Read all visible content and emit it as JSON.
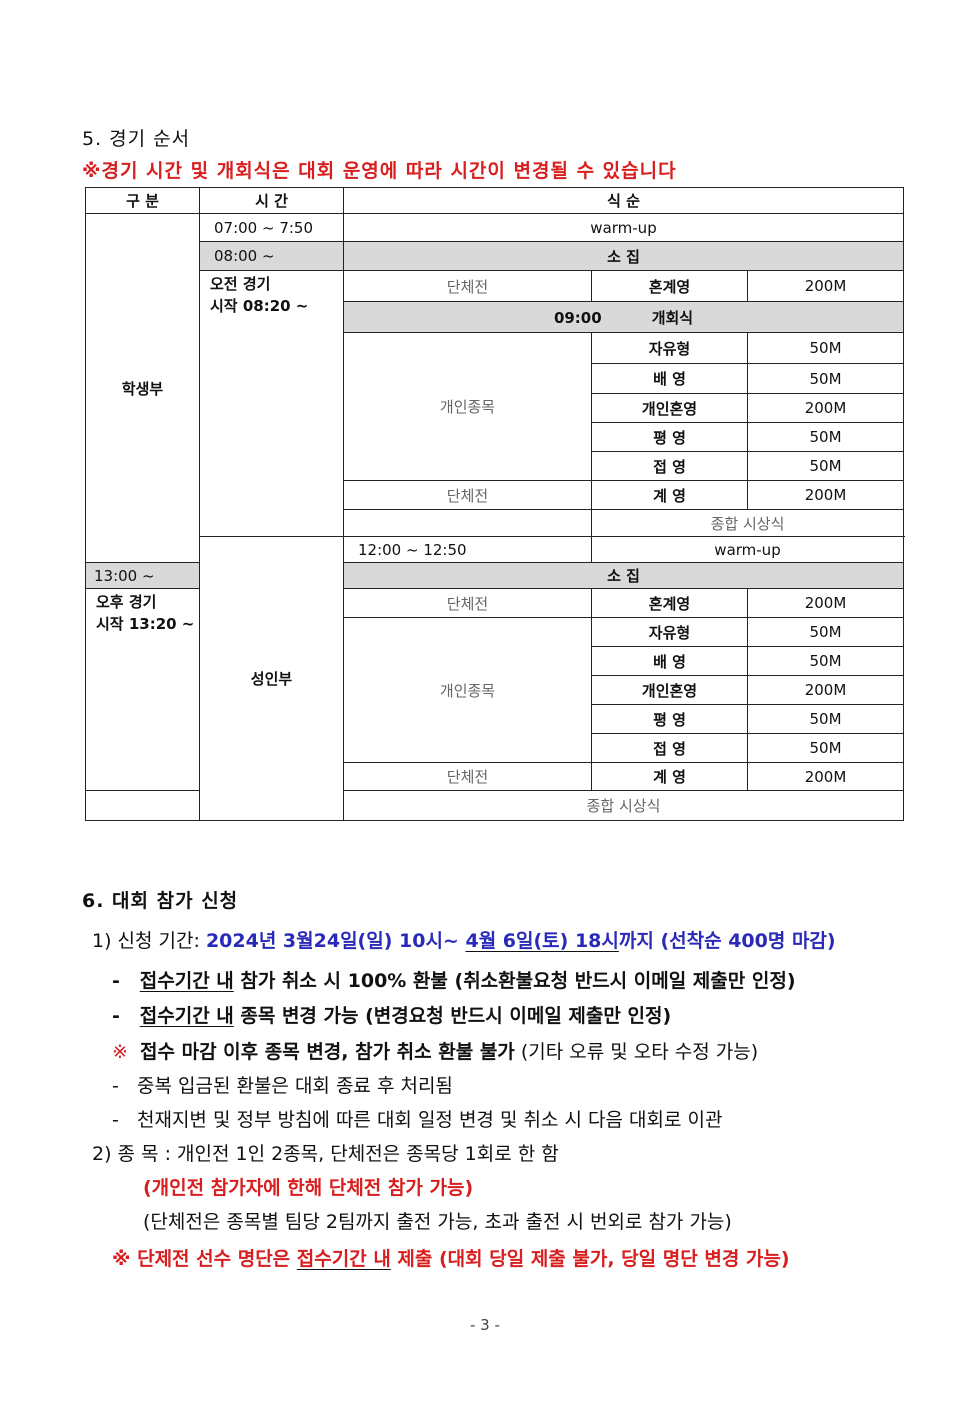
{
  "section5": {
    "title": "5.  경기  순서",
    "notice": "※경기 시간 및 개회식은 대회 운영에 따라 시간이 변경될 수 있습니다"
  },
  "table": {
    "headers": [
      "구 분",
      "시  간",
      "식    순"
    ],
    "student": {
      "group": "학생부",
      "warmup_time": "07:00 ~ 7:50",
      "warmup": "warm-up",
      "assembly_time": "08:00 ~",
      "assembly": "소    집",
      "start": "오전 경기",
      "start_time": "시작 08:20 ~",
      "opening_time": "09:00",
      "opening": "개회식",
      "rows": [
        [
          "단체전",
          "혼계영",
          "200M"
        ],
        [
          "개인종목",
          "자유형",
          "50M"
        ],
        [
          "",
          "배  영",
          "50M"
        ],
        [
          "",
          "개인혼영",
          "200M"
        ],
        [
          "",
          "평  영",
          "50M"
        ],
        [
          "",
          "접  영",
          "50M"
        ],
        [
          "단체전",
          "계  영",
          "200M"
        ]
      ],
      "award": "종합 시상식"
    },
    "adult": {
      "group": "성인부",
      "warmup_time": "12:00 ~ 12:50",
      "warmup": "warm-up",
      "assembly_time": "13:00 ~",
      "assembly": "소    집",
      "start": "오후 경기",
      "start_time": "시작 13:20 ~",
      "rows": [
        [
          "단체전",
          "혼계영",
          "200M"
        ],
        [
          "개인종목",
          "자유형",
          "50M"
        ],
        [
          "",
          "배  영",
          "50M"
        ],
        [
          "",
          "개인혼영",
          "200M"
        ],
        [
          "",
          "평  영",
          "50M"
        ],
        [
          "",
          "접  영",
          "50M"
        ],
        [
          "단체전",
          "계  영",
          "200M"
        ]
      ],
      "award": "종합 시상식"
    }
  },
  "section6": {
    "title": "6.  대회  참가  신청",
    "item1_label": "1)  신청  기간:",
    "item1_a": "2024년  3월24일(일) 10시~ ",
    "item1_b": "4월  6일(토) 18시",
    "item1_c": "까지 (선착순  400명 마감)",
    "b1_dash": "-",
    "b1_u": "접수기간  내",
    "b1_rest": " 참가 취소 시 100%  환불 (취소환불요청 반드시 이메일 제출만 인정)",
    "b2_dash": "-",
    "b2_u": "접수기간  내",
    "b2_rest": " 종목 변경 가능 (변경요청 반드시 이메일 제출만 인정)",
    "b3_mark": "※",
    "b3_bold": "접수 마감 이후 종목 변경, 참가 취소 환불 불가",
    "b3_rest": " (기타 오류 및 오타 수정 가능)",
    "b4_dash": "-",
    "b4": "중복 입금된 환불은 대회 종료 후 처리됨",
    "b5_dash": "-",
    "b5": "천재지변 및 정부 방침에 따른 대회 일정 변경 및 취소 시 다음 대회로 이관",
    "item2": "2)  종  목  :  개인전  1인  2종목,  단체전은  종목당  1회로  한  함",
    "item2_red": "(개인전  참가자에  한해  단체전  참가 가능)",
    "item2_note": "(단체전은  종목별  팀당  2팀까지  출전 가능, 초과 출전 시  번외로  참가  가능)",
    "final_a": "※ 단제전 선수 명단은 ",
    "final_u": "접수기간  내",
    "final_b": "  제출 (대회 당일  제출 불가, 당일 명단 변경 가능)"
  },
  "page_number": "- 3 -"
}
